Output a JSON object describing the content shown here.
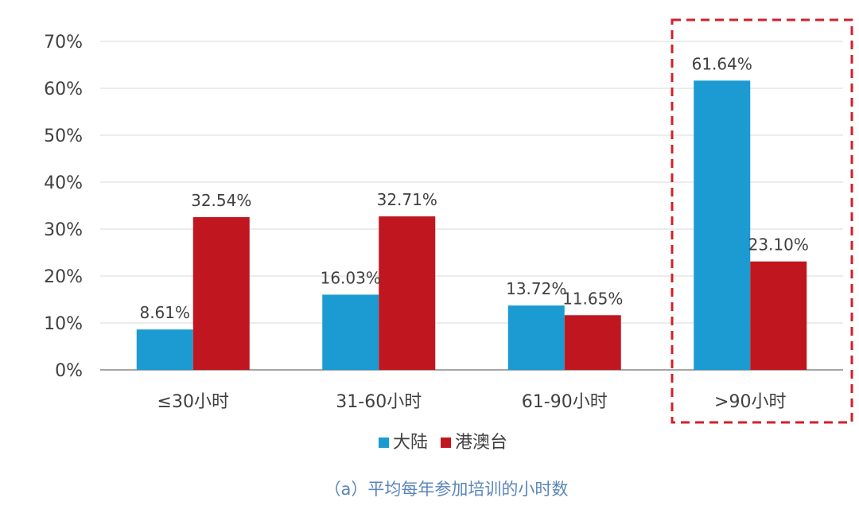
{
  "chart_data": {
    "type": "bar",
    "categories": [
      "≤30小时",
      "31-60小时",
      "61-90小时",
      ">90小时"
    ],
    "series": [
      {
        "name": "大陆",
        "color": "#1b9bd1",
        "values": [
          8.61,
          16.03,
          13.72,
          61.64
        ],
        "labels": [
          "8.61%",
          "16.03%",
          "13.72%",
          "61.64%"
        ]
      },
      {
        "name": "港澳台",
        "color": "#c0161f",
        "values": [
          32.54,
          32.71,
          11.65,
          23.1
        ],
        "labels": [
          "32.54%",
          "32.71%",
          "11.65%",
          "23.10%"
        ]
      }
    ],
    "ylim": [
      0,
      70
    ],
    "yticks": [
      0,
      10,
      20,
      30,
      40,
      50,
      60,
      70
    ],
    "ytick_labels": [
      "0%",
      "10%",
      "20%",
      "30%",
      "40%",
      "50%",
      "60%",
      "70%"
    ],
    "grid": true,
    "legend_position": "bottom",
    "highlight_category": ">90小时",
    "highlight_color": "#d0202a",
    "caption": "（a）平均每年参加培训的小时数"
  }
}
